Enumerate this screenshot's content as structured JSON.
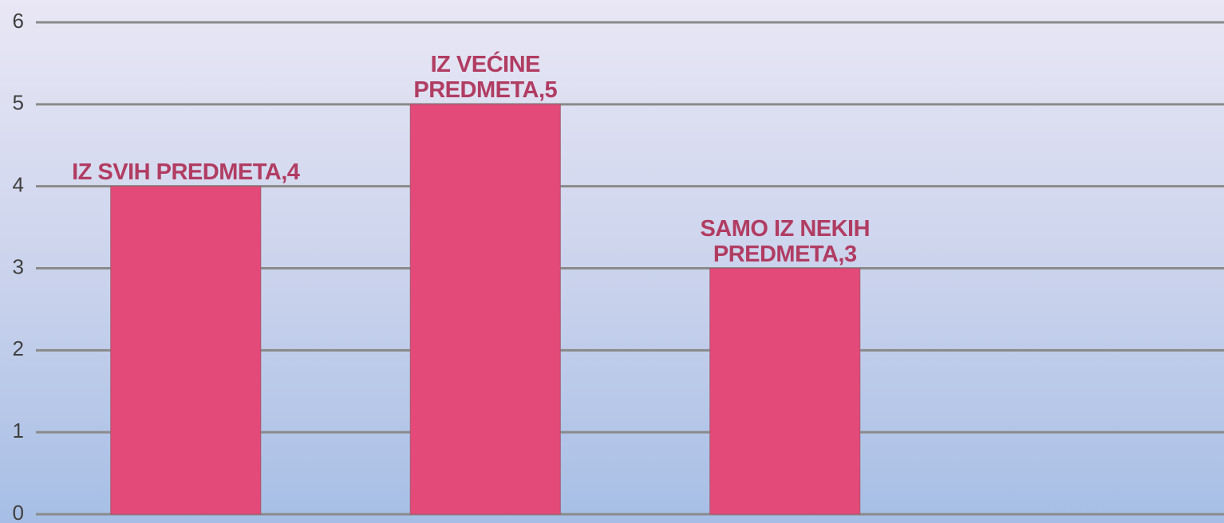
{
  "chart_data": {
    "type": "bar",
    "values": [
      4,
      5,
      3
    ],
    "value_labels": [
      "IZ SVIH PREDMETA,4",
      "IZ VEĆINE\nPREDMETA,5",
      "SAMO IZ NEKIH\nPREDMETA,3"
    ],
    "color": "#e34a79",
    "ylim": [
      0,
      6
    ],
    "yticks": [
      0,
      1,
      2,
      3,
      4,
      5,
      6
    ],
    "grid": true
  }
}
